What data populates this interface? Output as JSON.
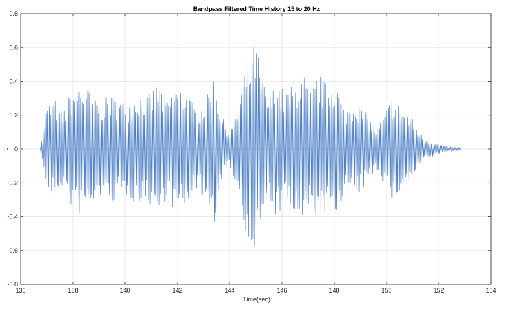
{
  "chart_data": {
    "type": "line",
    "title": "Bandpass Filtered Time History 15 to 20 Hz",
    "xlabel": "Time(sec)",
    "ylabel": "g",
    "xlim": [
      136,
      154
    ],
    "ylim": [
      -0.8,
      0.8
    ],
    "x_ticks": [
      136,
      138,
      140,
      142,
      144,
      146,
      148,
      150,
      152,
      154
    ],
    "y_ticks": [
      -0.8,
      -0.6,
      -0.4,
      -0.2,
      0,
      0.2,
      0.4,
      0.6,
      0.8
    ],
    "x_tick_labels": [
      "136",
      "138",
      "140",
      "142",
      "144",
      "146",
      "148",
      "150",
      "152",
      "154"
    ],
    "y_tick_labels": [
      "-0.8",
      "-0.6",
      "-0.4",
      "-0.2",
      "0",
      "0.2",
      "0.4",
      "0.6",
      "0.8"
    ],
    "grid": true,
    "line_color": "#4f81c7",
    "signal_start": 136.75,
    "signal_end": 152.85,
    "frequency_hz": 17.5,
    "envelope": {
      "t": [
        136.75,
        136.9,
        137.0,
        137.3,
        137.6,
        137.9,
        138.2,
        138.5,
        138.8,
        139.1,
        139.4,
        139.7,
        140.1,
        140.5,
        140.9,
        141.3,
        141.6,
        141.9,
        142.3,
        142.7,
        143.1,
        143.4,
        143.7,
        144.0,
        144.3,
        144.6,
        144.8,
        145.0,
        145.2,
        145.5,
        145.8,
        146.1,
        146.4,
        146.8,
        147.1,
        147.4,
        147.7,
        148.0,
        148.4,
        148.8,
        149.2,
        149.6,
        149.9,
        150.2,
        150.5,
        150.8,
        151.1,
        151.4,
        151.7,
        152.0,
        152.4,
        152.85
      ],
      "amp": [
        0.02,
        0.14,
        0.26,
        0.3,
        0.22,
        0.34,
        0.4,
        0.36,
        0.34,
        0.28,
        0.33,
        0.3,
        0.28,
        0.34,
        0.32,
        0.4,
        0.28,
        0.38,
        0.36,
        0.24,
        0.3,
        0.44,
        0.2,
        0.1,
        0.24,
        0.48,
        0.55,
        0.66,
        0.45,
        0.3,
        0.42,
        0.34,
        0.38,
        0.47,
        0.34,
        0.46,
        0.38,
        0.44,
        0.24,
        0.3,
        0.22,
        0.12,
        0.2,
        0.31,
        0.26,
        0.22,
        0.15,
        0.07,
        0.05,
        0.03,
        0.015,
        0.01
      ]
    }
  }
}
